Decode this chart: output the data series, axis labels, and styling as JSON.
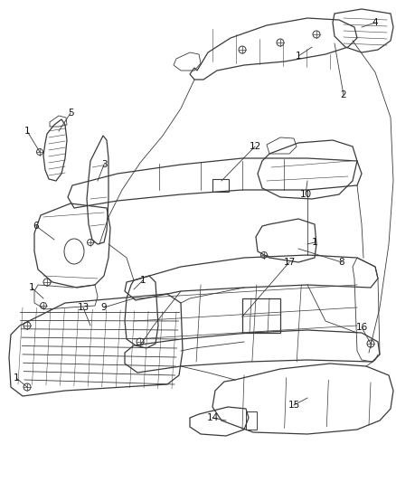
{
  "bg_color": "#ffffff",
  "line_color": "#3a3a3a",
  "label_color": "#111111",
  "label_fontsize": 7.5,
  "fig_width": 4.38,
  "fig_height": 5.33,
  "dpi": 100
}
